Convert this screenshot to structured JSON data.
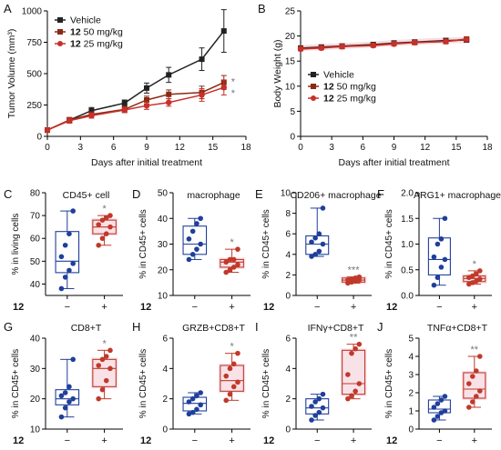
{
  "colors": {
    "vehicle": "#222222",
    "dose50": "#8b2a14",
    "dose25": "#c8302a",
    "control": "#1f3f9b",
    "treated": "#c0392b",
    "band": "#f3c6d0"
  },
  "chart_data": [
    {
      "panel": "A",
      "type": "line",
      "xlabel": "Days after initial treatment",
      "ylabel": "Tumor Volume (mm³)",
      "xlim": [
        0,
        18
      ],
      "ylim": [
        0,
        1000
      ],
      "xticks": [
        "0",
        "3",
        "6",
        "9",
        "12",
        "15",
        "18"
      ],
      "yticks": [
        "0",
        "250",
        "500",
        "750",
        "1000"
      ],
      "legend_position": "top-left",
      "significance": [
        "*",
        "*"
      ],
      "series": [
        {
          "name": "Vehicle",
          "marker": "square",
          "x": [
            0,
            2,
            4,
            7,
            9,
            11,
            14,
            16
          ],
          "y": [
            50,
            130,
            205,
            265,
            385,
            490,
            615,
            840
          ],
          "err": [
            10,
            20,
            25,
            25,
            40,
            60,
            90,
            170
          ]
        },
        {
          "name_bold": "12",
          "name": "50 mg/kg",
          "marker": "square",
          "x": [
            0,
            2,
            4,
            7,
            9,
            11,
            14,
            16
          ],
          "y": [
            50,
            130,
            175,
            215,
            290,
            335,
            350,
            430
          ],
          "err": [
            10,
            20,
            20,
            25,
            30,
            35,
            50,
            55
          ]
        },
        {
          "name_bold": "12",
          "name": "25 mg/kg",
          "marker": "circle",
          "x": [
            0,
            2,
            4,
            7,
            9,
            11,
            14,
            16
          ],
          "y": [
            50,
            125,
            165,
            210,
            245,
            270,
            330,
            390
          ],
          "err": [
            10,
            20,
            20,
            20,
            30,
            30,
            50,
            60
          ]
        }
      ]
    },
    {
      "panel": "B",
      "type": "line",
      "xlabel": "Days after initial treatment",
      "ylabel": "Body Weight (g)",
      "xlim": [
        0,
        18
      ],
      "ylim": [
        0,
        25
      ],
      "xticks": [
        "0",
        "3",
        "6",
        "9",
        "12",
        "15",
        "18"
      ],
      "yticks": [
        "0",
        "5",
        "10",
        "15",
        "20",
        "25"
      ],
      "legend_position": "lower-left",
      "series": [
        {
          "name": "Vehicle",
          "marker": "square",
          "x": [
            0,
            2,
            4,
            7,
            9,
            11,
            14,
            16
          ],
          "y": [
            17.6,
            17.8,
            18.0,
            18.3,
            18.6,
            18.8,
            19.1,
            19.2
          ]
        },
        {
          "name_bold": "12",
          "name": "50 mg/kg",
          "marker": "square",
          "x": [
            0,
            2,
            4,
            7,
            9,
            11,
            14,
            16
          ],
          "y": [
            17.5,
            17.7,
            17.9,
            18.2,
            18.5,
            18.7,
            18.9,
            19.4
          ]
        },
        {
          "name_bold": "12",
          "name": "25 mg/kg",
          "marker": "circle",
          "x": [
            0,
            2,
            4,
            7,
            9,
            11,
            14,
            16
          ],
          "y": [
            17.4,
            17.6,
            17.9,
            18.1,
            18.4,
            18.7,
            18.9,
            19.3
          ]
        }
      ]
    },
    {
      "panel": "C",
      "type": "box",
      "title": "CD45+ cell",
      "ylabel": "% in living cells",
      "ylim": [
        35,
        80
      ],
      "yticks": [
        "40",
        "50",
        "60",
        "70",
        "80"
      ],
      "row_label": "12",
      "groups": [
        "−",
        "+"
      ],
      "sig": "*",
      "box": [
        {
          "min": 38,
          "q1": 45,
          "med": 50,
          "q3": 63,
          "max": 72
        },
        {
          "min": 57,
          "q1": 62,
          "med": 65,
          "q3": 68,
          "max": 70
        }
      ],
      "points": [
        [
          38,
          43,
          46,
          49,
          52,
          57,
          62,
          72
        ],
        [
          57,
          60,
          62,
          65,
          66,
          68,
          69,
          70
        ]
      ]
    },
    {
      "panel": "D",
      "type": "box",
      "title": "macrophage",
      "ylabel": "% in CD45+ cells",
      "ylim": [
        10,
        50
      ],
      "yticks": [
        "10",
        "20",
        "30",
        "40",
        "50"
      ],
      "row_label": "12",
      "groups": [
        "−",
        "+"
      ],
      "sig": "*",
      "box": [
        {
          "min": 24,
          "q1": 26,
          "med": 30,
          "q3": 37,
          "max": 40
        },
        {
          "min": 19,
          "q1": 21,
          "med": 23,
          "q3": 24,
          "max": 28
        }
      ],
      "points": [
        [
          24,
          26,
          28,
          30,
          32,
          35,
          38,
          40
        ],
        [
          19,
          20,
          21,
          22,
          23,
          24,
          24,
          28
        ]
      ]
    },
    {
      "panel": "E",
      "type": "box",
      "title": "CD206+ macrophage",
      "ylabel": "% in CD45+ cells",
      "ylim": [
        0,
        10
      ],
      "yticks": [
        "0",
        "2",
        "4",
        "6",
        "8",
        "10"
      ],
      "row_label": "12",
      "groups": [
        "−",
        "+"
      ],
      "sig": "***",
      "box": [
        {
          "min": 3.8,
          "q1": 4.0,
          "med": 5.0,
          "q3": 5.8,
          "max": 8.5
        },
        {
          "min": 1.2,
          "q1": 1.3,
          "med": 1.5,
          "q3": 1.7,
          "max": 1.8
        }
      ],
      "points": [
        [
          3.8,
          4.0,
          4.3,
          5.0,
          5.2,
          5.6,
          6.0,
          8.5
        ],
        [
          1.2,
          1.3,
          1.4,
          1.5,
          1.5,
          1.6,
          1.7,
          1.8
        ]
      ]
    },
    {
      "panel": "F",
      "type": "box",
      "title": "ARG1+ macrophage",
      "ylabel": "% in CD45+ cells",
      "ylim": [
        0,
        2
      ],
      "yticks": [
        "0.0",
        "0.5",
        "1.0",
        "1.5",
        "2.0"
      ],
      "row_label": "12",
      "groups": [
        "−",
        "+"
      ],
      "sig": "*",
      "box": [
        {
          "min": 0.2,
          "q1": 0.4,
          "med": 0.7,
          "q3": 1.12,
          "max": 1.5
        },
        {
          "min": 0.22,
          "q1": 0.27,
          "med": 0.33,
          "q3": 0.38,
          "max": 0.48
        }
      ],
      "points": [
        [
          0.2,
          0.35,
          0.55,
          0.7,
          0.75,
          1.0,
          1.1,
          1.5
        ],
        [
          0.22,
          0.25,
          0.28,
          0.32,
          0.35,
          0.38,
          0.42,
          0.48
        ]
      ]
    },
    {
      "panel": "G",
      "type": "box",
      "title": "CD8+T",
      "ylabel": "% in CD45+ cells",
      "ylim": [
        10,
        40
      ],
      "yticks": [
        "10",
        "20",
        "30",
        "40"
      ],
      "row_label": "12",
      "groups": [
        "−",
        "+"
      ],
      "sig": "*",
      "box": [
        {
          "min": 14,
          "q1": 18,
          "med": 20,
          "q3": 23,
          "max": 33
        },
        {
          "min": 20,
          "q1": 24,
          "med": 30,
          "q3": 33,
          "max": 36
        }
      ],
      "points": [
        [
          14,
          17,
          19,
          20,
          21,
          22,
          24,
          33
        ],
        [
          20,
          23,
          26,
          30,
          31,
          33,
          34,
          36
        ]
      ]
    },
    {
      "panel": "H",
      "type": "box",
      "title": "GRZB+CD8+T",
      "ylabel": "% in CD45+ cells",
      "ylim": [
        0,
        6
      ],
      "yticks": [
        "0",
        "2",
        "4",
        "6"
      ],
      "row_label": "12",
      "groups": [
        "−",
        "+"
      ],
      "sig": "*",
      "box": [
        {
          "min": 1.0,
          "q1": 1.2,
          "med": 1.7,
          "q3": 2.1,
          "max": 2.4
        },
        {
          "min": 1.9,
          "q1": 2.5,
          "med": 3.2,
          "q3": 4.2,
          "max": 5.0
        }
      ],
      "points": [
        [
          1.0,
          1.1,
          1.3,
          1.6,
          1.8,
          2.0,
          2.2,
          2.4
        ],
        [
          1.9,
          2.3,
          2.8,
          3.1,
          3.5,
          4.0,
          4.3,
          5.0
        ]
      ]
    },
    {
      "panel": "I",
      "type": "box",
      "title": "IFNγ+CD8+T",
      "ylabel": "% in CD45+ cells",
      "ylim": [
        0,
        6
      ],
      "yticks": [
        "0",
        "2",
        "4",
        "6"
      ],
      "row_label": "12",
      "groups": [
        "−",
        "+"
      ],
      "sig": "**",
      "box": [
        {
          "min": 0.6,
          "q1": 1.0,
          "med": 1.4,
          "q3": 2.0,
          "max": 2.3
        },
        {
          "min": 2.0,
          "q1": 2.3,
          "med": 3.0,
          "q3": 5.2,
          "max": 5.6
        }
      ],
      "points": [
        [
          0.6,
          0.9,
          1.1,
          1.4,
          1.5,
          1.8,
          2.0,
          2.3
        ],
        [
          2.0,
          2.2,
          2.5,
          3.0,
          3.6,
          5.0,
          5.3,
          5.6
        ]
      ]
    },
    {
      "panel": "J",
      "type": "box",
      "title": "TNFα+CD8+T",
      "ylabel": "% in CD45+ cells",
      "ylim": [
        0,
        5
      ],
      "yticks": [
        "0",
        "1",
        "2",
        "3",
        "4",
        "5"
      ],
      "row_label": "12",
      "groups": [
        "−",
        "+"
      ],
      "sig": "**",
      "box": [
        {
          "min": 0.5,
          "q1": 0.9,
          "med": 1.1,
          "q3": 1.6,
          "max": 1.8
        },
        {
          "min": 1.2,
          "q1": 1.7,
          "med": 2.2,
          "q3": 3.1,
          "max": 4.0
        }
      ],
      "points": [
        [
          0.5,
          0.7,
          0.9,
          1.0,
          1.2,
          1.4,
          1.6,
          1.8
        ],
        [
          1.2,
          1.5,
          1.8,
          2.1,
          2.5,
          2.9,
          3.2,
          4.0
        ]
      ]
    }
  ]
}
